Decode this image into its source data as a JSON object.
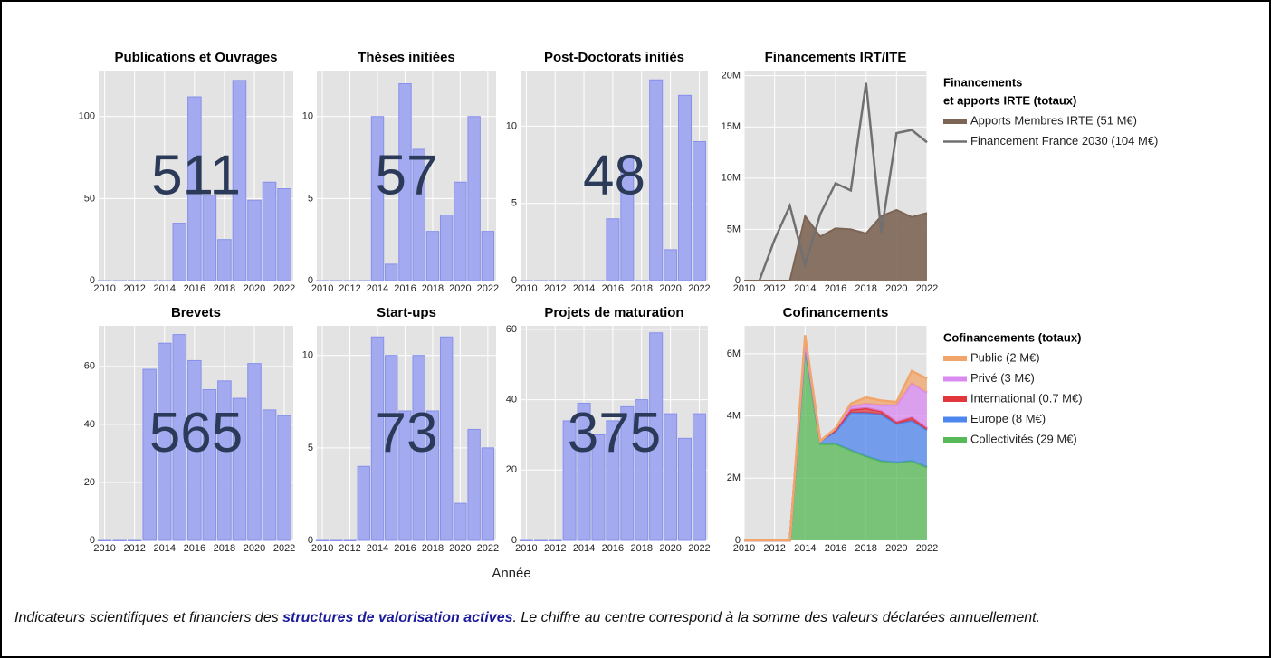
{
  "chart_data": [
    {
      "type": "bar",
      "title": "Publications et Ouvrages",
      "total": 511,
      "color": "#a3aaf0",
      "x": [
        2010,
        2011,
        2012,
        2013,
        2014,
        2015,
        2016,
        2017,
        2018,
        2019,
        2020,
        2021,
        2022
      ],
      "values": [
        0,
        0,
        0,
        0,
        0,
        35,
        112,
        52,
        25,
        122,
        49,
        60,
        56
      ],
      "xlim": [
        2009.6,
        2022.6
      ],
      "xticks": [
        2010,
        2012,
        2014,
        2016,
        2018,
        2020,
        2022
      ],
      "ylim": [
        0,
        128
      ],
      "yticks": [
        0,
        50,
        100
      ]
    },
    {
      "type": "bar",
      "title": "Thèses initiées",
      "total": 57,
      "color": "#a3aaf0",
      "x": [
        2010,
        2011,
        2012,
        2013,
        2014,
        2015,
        2016,
        2017,
        2018,
        2019,
        2020,
        2021,
        2022
      ],
      "values": [
        0,
        0,
        0,
        0,
        10,
        1,
        12,
        8,
        3,
        4,
        6,
        10,
        3
      ],
      "xlim": [
        2009.6,
        2022.6
      ],
      "xticks": [
        2010,
        2012,
        2014,
        2016,
        2018,
        2020,
        2022
      ],
      "ylim": [
        0,
        12.8
      ],
      "yticks": [
        0,
        5,
        10
      ]
    },
    {
      "type": "bar",
      "title": "Post-Doctorats initiés",
      "total": 48,
      "color": "#a3aaf0",
      "x": [
        2010,
        2011,
        2012,
        2013,
        2014,
        2015,
        2016,
        2017,
        2018,
        2019,
        2020,
        2021,
        2022
      ],
      "values": [
        0,
        0,
        0,
        0,
        0,
        0,
        4,
        8,
        0,
        13,
        2,
        12,
        9
      ],
      "xlim": [
        2009.6,
        2022.6
      ],
      "xticks": [
        2010,
        2012,
        2014,
        2016,
        2018,
        2020,
        2022
      ],
      "ylim": [
        0,
        13.6
      ],
      "yticks": [
        0,
        5,
        10
      ]
    },
    {
      "type": "line",
      "title": "Financements IRT/ITE",
      "legend_title": [
        "Financements",
        "et apports IRTE (totaux)"
      ],
      "x": [
        2010,
        2011,
        2012,
        2013,
        2014,
        2015,
        2016,
        2017,
        2018,
        2019,
        2020,
        2021,
        2022
      ],
      "series": [
        {
          "name": "Apports Membres IRTE (51 M€)",
          "color": "#7d6555",
          "fill": true,
          "values": [
            0,
            0,
            0,
            0,
            6300000,
            4300000,
            5100000,
            5000000,
            4600000,
            6300000,
            6900000,
            6200000,
            6600000
          ]
        },
        {
          "name": "Financement France 2030 (104 M€)",
          "color": "#707070",
          "fill": false,
          "values": [
            null,
            0,
            4000000,
            7300000,
            1500000,
            6500000,
            9500000,
            8800000,
            19300000,
            4700000,
            14400000,
            14700000,
            13500000
          ]
        }
      ],
      "xlim": [
        2010,
        2022
      ],
      "xticks": [
        2010,
        2012,
        2014,
        2016,
        2018,
        2020,
        2022
      ],
      "ylim": [
        0,
        20500000
      ],
      "yticks": [
        0,
        {
          "value": 5000000,
          "label": "5M"
        },
        {
          "value": 10000000,
          "label": "10M"
        },
        {
          "value": 15000000,
          "label": "15M"
        },
        {
          "value": 20000000,
          "label": "20M"
        }
      ]
    },
    {
      "type": "bar",
      "title": "Brevets",
      "total": 565,
      "color": "#a3aaf0",
      "x": [
        2010,
        2011,
        2012,
        2013,
        2014,
        2015,
        2016,
        2017,
        2018,
        2019,
        2020,
        2021,
        2022
      ],
      "values": [
        0,
        0,
        0,
        59,
        68,
        71,
        62,
        52,
        55,
        49,
        61,
        45,
        43
      ],
      "xlim": [
        2009.6,
        2022.6
      ],
      "xticks": [
        2010,
        2012,
        2014,
        2016,
        2018,
        2020,
        2022
      ],
      "ylim": [
        0,
        74
      ],
      "yticks": [
        0,
        20,
        40,
        60
      ]
    },
    {
      "type": "bar",
      "title": "Start-ups",
      "total": 73,
      "color": "#a3aaf0",
      "x": [
        2010,
        2011,
        2012,
        2013,
        2014,
        2015,
        2016,
        2017,
        2018,
        2019,
        2020,
        2021,
        2022
      ],
      "values": [
        0,
        0,
        0,
        4,
        11,
        10,
        7,
        10,
        7,
        11,
        2,
        6,
        5
      ],
      "xlim": [
        2009.6,
        2022.6
      ],
      "xticks": [
        2010,
        2012,
        2014,
        2016,
        2018,
        2020,
        2022
      ],
      "ylim": [
        0,
        11.6
      ],
      "yticks": [
        0,
        5,
        10
      ]
    },
    {
      "type": "bar",
      "title": "Projets de maturation",
      "total": 375,
      "color": "#a3aaf0",
      "x": [
        2010,
        2011,
        2012,
        2013,
        2014,
        2015,
        2016,
        2017,
        2018,
        2019,
        2020,
        2021,
        2022
      ],
      "values": [
        0,
        0,
        0,
        34,
        39,
        30,
        34,
        38,
        40,
        59,
        36,
        29,
        36
      ],
      "xlim": [
        2009.6,
        2022.6
      ],
      "xticks": [
        2010,
        2012,
        2014,
        2016,
        2018,
        2020,
        2022
      ],
      "ylim": [
        0,
        61
      ],
      "yticks": [
        0,
        20,
        40,
        60
      ]
    },
    {
      "type": "area",
      "stacked": true,
      "title": "Cofinancements",
      "legend_title": [
        "Cofinancements (totaux)"
      ],
      "x": [
        2010,
        2011,
        2012,
        2013,
        2014,
        2015,
        2016,
        2017,
        2018,
        2019,
        2020,
        2021,
        2022
      ],
      "series": [
        {
          "name": "Public (2 M€)",
          "color": "#f2a56b",
          "values": [
            0,
            0,
            0,
            0,
            200000,
            0,
            0,
            100000,
            200000,
            150000,
            100000,
            400000,
            450000
          ]
        },
        {
          "name": "Privé (3 M€)",
          "color": "#d88af0",
          "values": [
            0,
            0,
            0,
            0,
            0,
            0,
            50000,
            100000,
            150000,
            200000,
            550000,
            1100000,
            1150000
          ]
        },
        {
          "name": "International (0.7 M€)",
          "color": "#e0363c",
          "values": [
            0,
            0,
            0,
            0,
            100000,
            0,
            50000,
            100000,
            150000,
            100000,
            50000,
            100000,
            50000
          ]
        },
        {
          "name": "Europe (8 M€)",
          "color": "#4d86ee",
          "values": [
            0,
            0,
            0,
            0,
            100000,
            100000,
            400000,
            1200000,
            1400000,
            1500000,
            1250000,
            1300000,
            1200000
          ]
        },
        {
          "name": "Collectivités (29 M€)",
          "color": "#56b856",
          "values": [
            0,
            0,
            0,
            0,
            6200000,
            3100000,
            3100000,
            2900000,
            2700000,
            2550000,
            2500000,
            2550000,
            2350000
          ]
        }
      ],
      "xlim": [
        2010,
        2022
      ],
      "xticks": [
        2010,
        2012,
        2014,
        2016,
        2018,
        2020,
        2022
      ],
      "ylim": [
        0,
        6900000
      ],
      "yticks": [
        0,
        {
          "value": 2000000,
          "label": "2M"
        },
        {
          "value": 4000000,
          "label": "4M"
        },
        {
          "value": 6000000,
          "label": "6M"
        }
      ]
    }
  ],
  "xlabel": "Année",
  "caption": {
    "before": "Indicateurs scientifiques et financiers des ",
    "link": "structures de valorisation actives",
    "after": ". Le chiffre au centre correspond à la somme des valeurs déclarées annuellement."
  }
}
